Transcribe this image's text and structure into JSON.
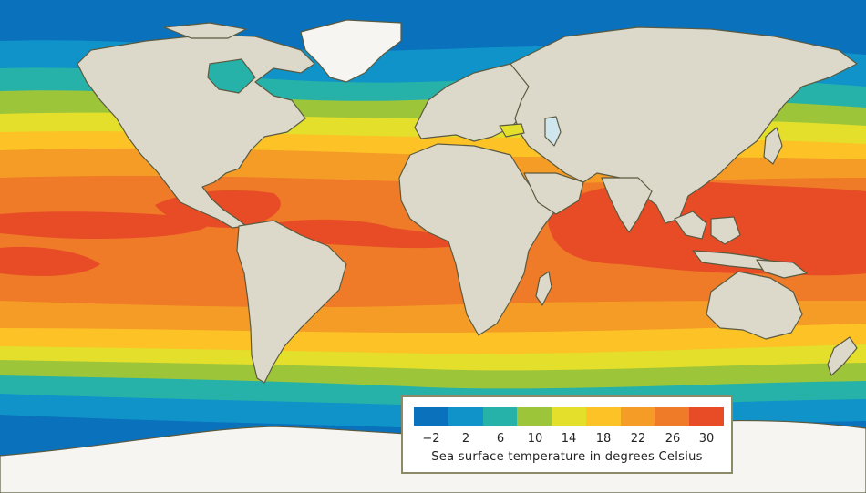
{
  "map": {
    "ocean_colors": {
      "c_neg2": "#0a71bd",
      "c_2": "#0f93c9",
      "c_6": "#26b2a8",
      "c_10": "#9dc53a",
      "c_14": "#e3df2b",
      "c_18": "#fcc226",
      "c_22": "#f59c27",
      "c_26": "#ef7a27",
      "c_30": "#e74c26"
    },
    "land_color": "#dcd9cb",
    "coast_color": "#5b5a3f",
    "ice_color": "#f6f5f1"
  },
  "legend": {
    "values": [
      "−2",
      "2",
      "6",
      "10",
      "14",
      "18",
      "22",
      "26",
      "30"
    ],
    "colors": [
      "#0a71bd",
      "#0f93c9",
      "#26b2a8",
      "#9dc53a",
      "#e3df2b",
      "#fcc226",
      "#f59c27",
      "#ef7a27",
      "#e74c26"
    ],
    "caption": "Sea surface temperature in degrees Celsius"
  }
}
